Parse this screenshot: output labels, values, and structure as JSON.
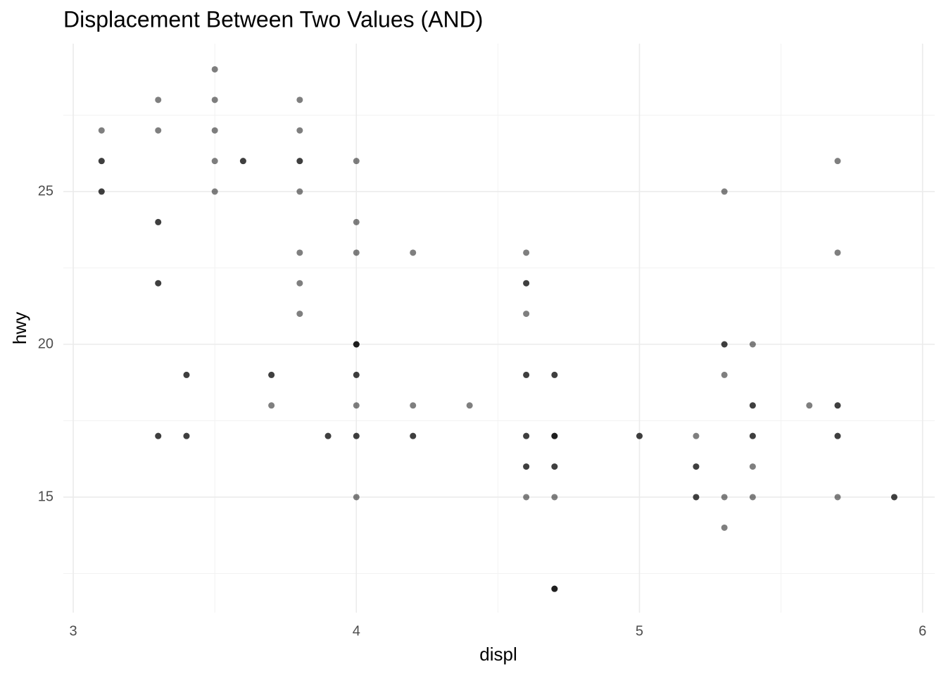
{
  "chart_data": {
    "type": "scatter",
    "title": "Displacement Between Two Values (AND)",
    "x_label": "displ",
    "y_label": "hwy",
    "xlim": [
      2.965,
      6.043
    ],
    "ylim": [
      11.22,
      29.84
    ],
    "xticks": [
      3,
      4,
      5,
      6
    ],
    "yticks": [
      15,
      20,
      25
    ],
    "xminor": [
      3.5,
      4.5,
      5.5
    ],
    "yminor": [
      12.5,
      17.5,
      22.5,
      27.5
    ],
    "grid": true,
    "color": "#000000",
    "alpha": 0.5,
    "x": [
      3.1,
      3.1,
      3.1,
      3.1,
      3.1,
      3.3,
      3.3,
      3.3,
      3.3,
      3.3,
      3.3,
      3.3,
      3.3,
      3.4,
      3.4,
      3.4,
      3.4,
      3.5,
      3.5,
      3.5,
      3.5,
      3.5,
      3.6,
      3.6,
      3.7,
      3.7,
      3.7,
      3.8,
      3.8,
      3.8,
      3.8,
      3.8,
      3.8,
      3.8,
      3.8,
      3.9,
      3.9,
      4.0,
      4.0,
      4.0,
      4.0,
      4.0,
      4.0,
      4.0,
      4.0,
      4.0,
      4.0,
      4.0,
      4.0,
      4.2,
      4.2,
      4.2,
      4.2,
      4.4,
      4.6,
      4.6,
      4.6,
      4.6,
      4.6,
      4.6,
      4.6,
      4.6,
      4.6,
      4.6,
      4.6,
      4.7,
      4.7,
      4.7,
      4.7,
      4.7,
      4.7,
      4.7,
      4.7,
      4.7,
      4.7,
      4.7,
      5.0,
      5.0,
      5.2,
      5.2,
      5.2,
      5.2,
      5.2,
      5.3,
      5.3,
      5.3,
      5.3,
      5.3,
      5.3,
      5.4,
      5.4,
      5.4,
      5.4,
      5.4,
      5.4,
      5.4,
      5.6,
      5.7,
      5.7,
      5.7,
      5.7,
      5.7,
      5.7,
      5.7,
      5.9,
      5.9
    ],
    "y": [
      27,
      26,
      26,
      25,
      25,
      28,
      27,
      24,
      24,
      22,
      22,
      17,
      17,
      19,
      19,
      17,
      17,
      29,
      28,
      27,
      26,
      25,
      26,
      26,
      19,
      19,
      18,
      28,
      27,
      26,
      26,
      25,
      23,
      22,
      21,
      17,
      17,
      26,
      24,
      23,
      20,
      20,
      20,
      19,
      19,
      18,
      17,
      17,
      15,
      23,
      18,
      17,
      17,
      18,
      23,
      22,
      22,
      21,
      19,
      19,
      17,
      17,
      16,
      16,
      15,
      19,
      19,
      17,
      17,
      17,
      16,
      16,
      15,
      12,
      12,
      12,
      17,
      17,
      17,
      16,
      16,
      15,
      15,
      25,
      20,
      20,
      19,
      15,
      14,
      20,
      18,
      18,
      17,
      17,
      16,
      15,
      18,
      26,
      23,
      18,
      18,
      17,
      17,
      15,
      15,
      15
    ]
  }
}
